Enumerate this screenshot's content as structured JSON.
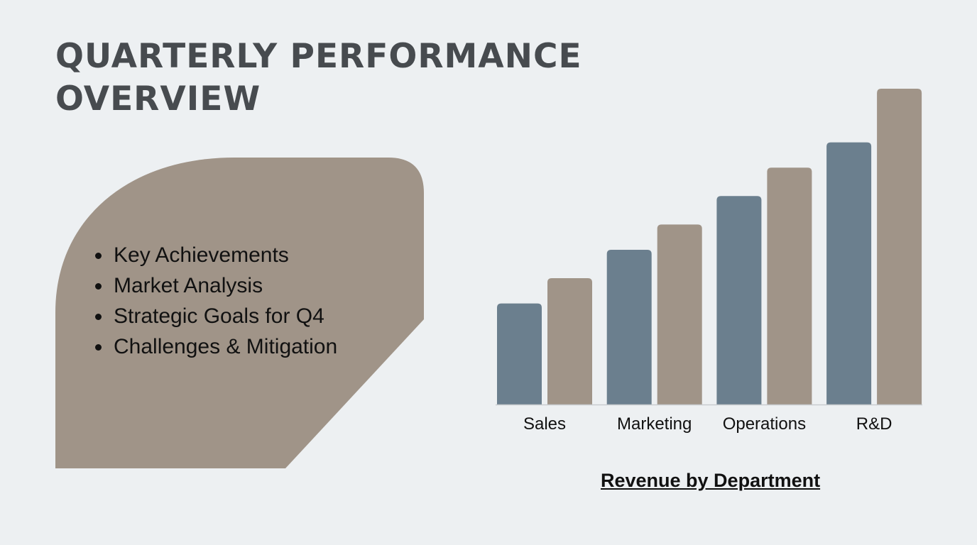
{
  "slide": {
    "title": "QUARTERLY PERFORMANCE OVERVIEW",
    "bullets": [
      "Key Achievements",
      "Market Analysis",
      "Strategic Goals for Q4",
      "Challenges & Mitigation"
    ],
    "shape_color": "#a09488",
    "background": "#edf0f2"
  },
  "chart_data": {
    "type": "bar",
    "title": "Revenue by Department",
    "categories": [
      "Sales",
      "Marketing",
      "Operations",
      "R&D"
    ],
    "series": [
      {
        "values": [
          32,
          49,
          66,
          83
        ],
        "color": "#6b7f8e"
      },
      {
        "values": [
          40,
          57,
          75,
          100
        ],
        "color": "#a09488"
      }
    ],
    "ylim": [
      0,
      100
    ],
    "y_axis_shown": false,
    "grid": false,
    "legend": "none"
  }
}
